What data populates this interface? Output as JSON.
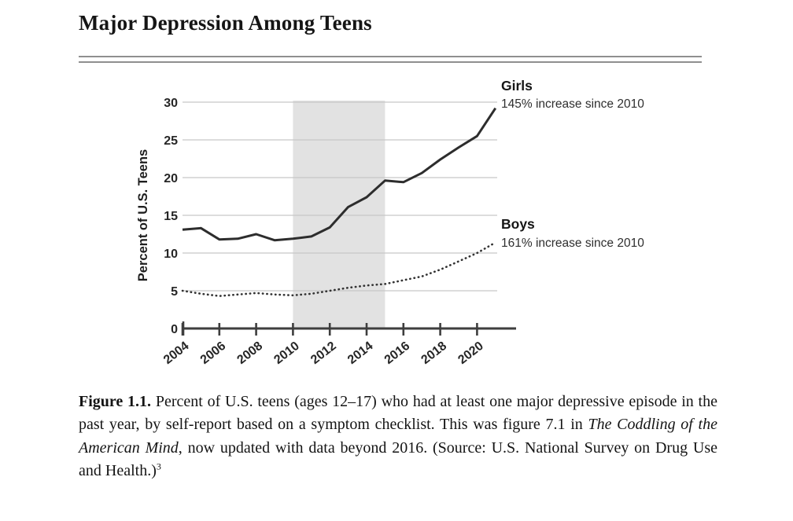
{
  "header": {
    "title": "Major Depression Among Teens"
  },
  "chart_data": {
    "type": "line",
    "title": "Major Depression Among Teens",
    "xlabel": "",
    "ylabel": "Percent of U.S. Teens",
    "ylim": [
      0,
      30
    ],
    "yticks": [
      0,
      5,
      10,
      15,
      20,
      25,
      30
    ],
    "xtick_years": [
      2004,
      2006,
      2008,
      2010,
      2012,
      2014,
      2016,
      2018,
      2020
    ],
    "x": [
      2004,
      2005,
      2006,
      2007,
      2008,
      2009,
      2010,
      2011,
      2012,
      2013,
      2014,
      2015,
      2016,
      2017,
      2018,
      2019,
      2020,
      2021
    ],
    "series": [
      {
        "name": "Girls",
        "annotation": "145% increase since 2010",
        "style": "solid",
        "color": "#2d2d2d",
        "values": [
          13.1,
          13.3,
          11.8,
          11.9,
          12.5,
          11.7,
          11.9,
          12.2,
          13.4,
          16.1,
          17.4,
          19.6,
          19.4,
          20.6,
          22.4,
          24.0,
          25.5,
          29.2
        ]
      },
      {
        "name": "Boys",
        "annotation": "161% increase since 2010",
        "style": "dotted",
        "color": "#333333",
        "values": [
          5.0,
          4.6,
          4.3,
          4.5,
          4.7,
          4.5,
          4.4,
          4.6,
          5.0,
          5.4,
          5.7,
          5.9,
          6.4,
          6.9,
          7.8,
          8.9,
          10.0,
          11.4
        ]
      }
    ],
    "shaded_region": {
      "from": 2010,
      "to": 2015,
      "color": "#e2e2e2"
    },
    "grid": "horizontal",
    "gridline_color": "#c7c7c7",
    "axis_color": "#3e3e3e",
    "legend_position": "right-annotations"
  },
  "caption": {
    "label": "Figure 1.1.",
    "before_italic": " Percent of U.S. teens (ages 12–17) who had at least one major depressive episode in the past year, by self-report based on a symptom checklist. This was figure 7.1 in ",
    "italic_title": "The Coddling of the American Mind",
    "after_italic": ", now updated with data beyond 2016. (Source: U.S. National Survey on Drug Use and Health.)",
    "footnote": "3"
  }
}
